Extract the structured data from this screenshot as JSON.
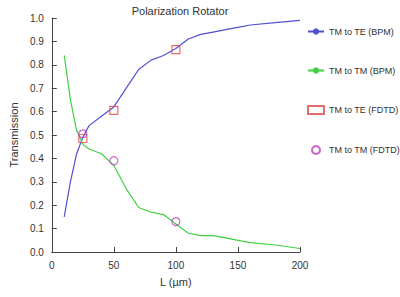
{
  "chart_data": {
    "type": "line",
    "title": "Polarization Rotator",
    "x_label": "L (µm)",
    "y_label": "Transmission",
    "xlim": [
      0,
      200
    ],
    "xticks": [
      0,
      50,
      100,
      150,
      200
    ],
    "ylim": [
      0,
      1
    ],
    "yticks": [
      {
        "value": 0,
        "label": "0.0"
      },
      0.1,
      0.2,
      0.3,
      0.4,
      0.5,
      0.6,
      0.7,
      0.8,
      0.9,
      {
        "value": 1,
        "label": "1.0"
      }
    ],
    "grid": false,
    "legend": "right",
    "series": [
      {
        "name": "TM to TE (BPM)",
        "type": "line",
        "color": "#5050d0",
        "line_style": "solid",
        "x": [
          10,
          15,
          20,
          25,
          30,
          40,
          50,
          60,
          70,
          80,
          90,
          100,
          110,
          120,
          130,
          140,
          150,
          160,
          180,
          200
        ],
        "values": [
          0.15,
          0.3,
          0.42,
          0.49,
          0.54,
          0.58,
          0.62,
          0.7,
          0.78,
          0.82,
          0.84,
          0.87,
          0.91,
          0.93,
          0.94,
          0.95,
          0.96,
          0.97,
          0.98,
          0.99
        ]
      },
      {
        "name": "TM to TM (BPM)",
        "type": "line",
        "color": "#40d040",
        "line_style": "solid",
        "x": [
          10,
          15,
          20,
          25,
          30,
          40,
          50,
          60,
          70,
          80,
          90,
          100,
          110,
          120,
          130,
          140,
          150,
          160,
          180,
          200
        ],
        "values": [
          0.84,
          0.65,
          0.52,
          0.46,
          0.44,
          0.42,
          0.37,
          0.27,
          0.19,
          0.17,
          0.16,
          0.12,
          0.08,
          0.07,
          0.07,
          0.06,
          0.05,
          0.04,
          0.03,
          0.015
        ]
      },
      {
        "name": "TM to TE (FDTD)",
        "type": "scatter",
        "color": "#e04848",
        "marker": "square",
        "x": [
          25,
          50,
          100
        ],
        "values": [
          0.485,
          0.605,
          0.865
        ]
      },
      {
        "name": "TM to TM (FDTD)",
        "type": "scatter",
        "color": "#c040c0",
        "marker": "circle",
        "x": [
          25,
          50,
          100
        ],
        "values": [
          0.505,
          0.39,
          0.13
        ]
      }
    ]
  }
}
